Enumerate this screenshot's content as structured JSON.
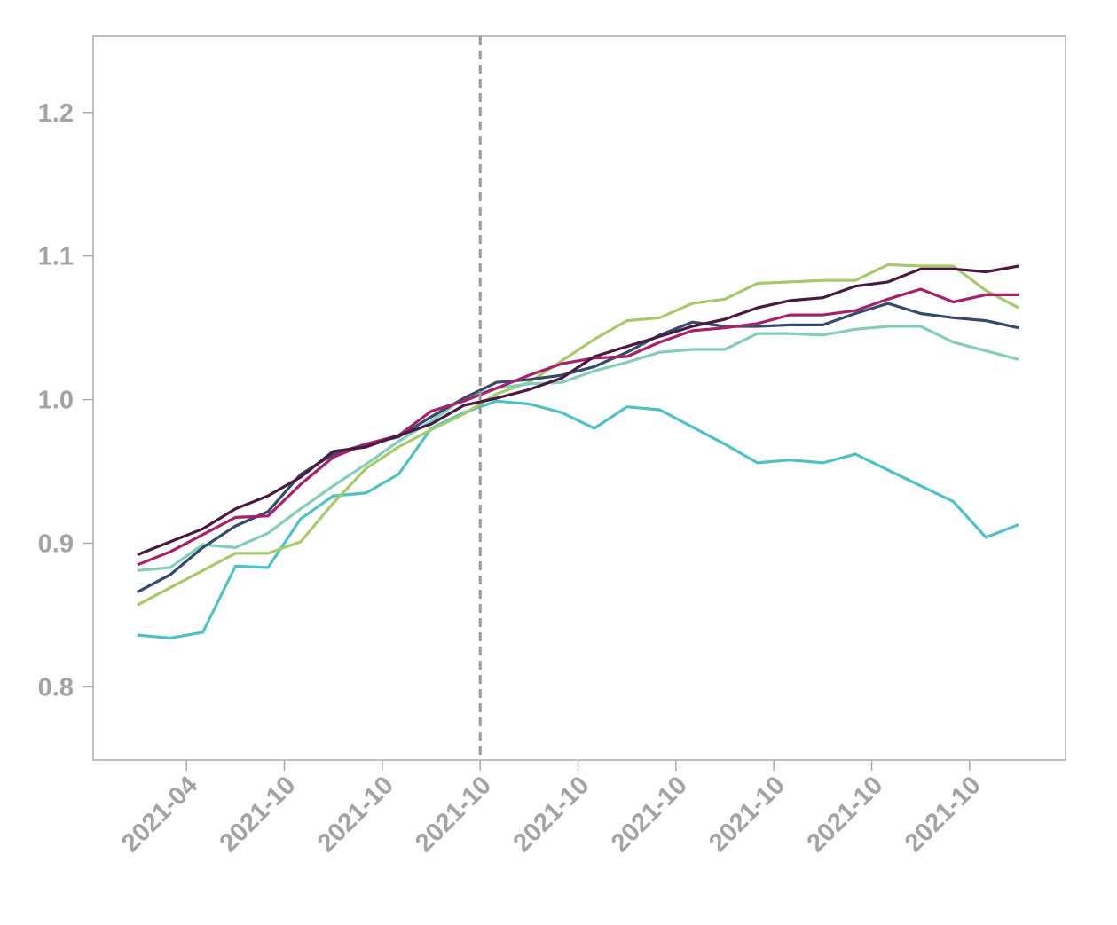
{
  "chart_data": {
    "type": "line",
    "title": "",
    "xlabel": "",
    "ylabel": "",
    "ylim": [
      0.749,
      1.253
    ],
    "xlim": [
      -1.36,
      28.44
    ],
    "grid": false,
    "legend": "none",
    "yticks": [
      {
        "value": 0.8,
        "label": "0.8"
      },
      {
        "value": 0.9,
        "label": "0.9"
      },
      {
        "value": 1.0,
        "label": "1.0"
      },
      {
        "value": 1.1,
        "label": "1.1"
      },
      {
        "value": 1.2,
        "label": "1.2"
      }
    ],
    "xticks": [
      {
        "pos": 1.5,
        "label": "2021-04"
      },
      {
        "pos": 4.5,
        "label": "2021-10"
      },
      {
        "pos": 7.5,
        "label": "2021-10"
      },
      {
        "pos": 10.5,
        "label": "2021-10"
      },
      {
        "pos": 13.5,
        "label": "2021-10"
      },
      {
        "pos": 16.5,
        "label": "2021-10"
      },
      {
        "pos": 19.5,
        "label": "2021-10"
      },
      {
        "pos": 22.5,
        "label": "2021-10"
      },
      {
        "pos": 25.5,
        "label": "2021-10"
      }
    ],
    "vline": {
      "pos": 10.5,
      "style": "dashed",
      "color": "#999999"
    },
    "series": [
      {
        "color": "#4fc1c6",
        "values": [
          0.836,
          0.834,
          0.838,
          0.884,
          0.883,
          0.917,
          0.933,
          0.935,
          0.948,
          0.98,
          0.991,
          0.999,
          0.997,
          0.991,
          0.98,
          0.995,
          0.993,
          0.981,
          0.969,
          0.956,
          0.958,
          0.956,
          0.962,
          0.951,
          0.94,
          0.929,
          0.904,
          0.913
        ]
      },
      {
        "color": "#a5c96b",
        "values": [
          0.857,
          0.869,
          0.881,
          0.893,
          0.893,
          0.901,
          0.928,
          0.952,
          0.967,
          0.979,
          0.99,
          1.004,
          1.012,
          1.027,
          1.042,
          1.055,
          1.057,
          1.067,
          1.07,
          1.081,
          1.082,
          1.083,
          1.083,
          1.094,
          1.093,
          1.093,
          1.076,
          1.064
        ]
      },
      {
        "color": "#84cdb8",
        "values": [
          0.881,
          0.883,
          0.899,
          0.897,
          0.907,
          0.924,
          0.94,
          0.955,
          0.971,
          0.985,
          1.001,
          1.008,
          1.011,
          1.012,
          1.02,
          1.026,
          1.033,
          1.035,
          1.035,
          1.046,
          1.046,
          1.045,
          1.049,
          1.051,
          1.051,
          1.04,
          1.034,
          1.028
        ]
      },
      {
        "color": "#364a6e",
        "values": [
          0.866,
          0.878,
          0.897,
          0.912,
          0.922,
          0.948,
          0.962,
          0.969,
          0.974,
          0.988,
          1.001,
          1.012,
          1.014,
          1.017,
          1.023,
          1.033,
          1.045,
          1.054,
          1.051,
          1.051,
          1.052,
          1.052,
          1.06,
          1.067,
          1.06,
          1.057,
          1.055,
          1.05
        ]
      },
      {
        "color": "#a8206a",
        "values": [
          0.885,
          0.894,
          0.906,
          0.918,
          0.919,
          0.941,
          0.96,
          0.969,
          0.975,
          0.992,
          0.999,
          1.008,
          1.017,
          1.025,
          1.029,
          1.03,
          1.04,
          1.048,
          1.05,
          1.053,
          1.059,
          1.059,
          1.062,
          1.07,
          1.077,
          1.068,
          1.073,
          1.073
        ]
      },
      {
        "color": "#4a1942",
        "values": [
          0.892,
          0.901,
          0.91,
          0.924,
          0.933,
          0.946,
          0.964,
          0.967,
          0.975,
          0.983,
          0.996,
          1.001,
          1.007,
          1.015,
          1.03,
          1.037,
          1.044,
          1.051,
          1.056,
          1.064,
          1.069,
          1.071,
          1.079,
          1.082,
          1.091,
          1.091,
          1.089,
          1.093
        ]
      }
    ]
  }
}
